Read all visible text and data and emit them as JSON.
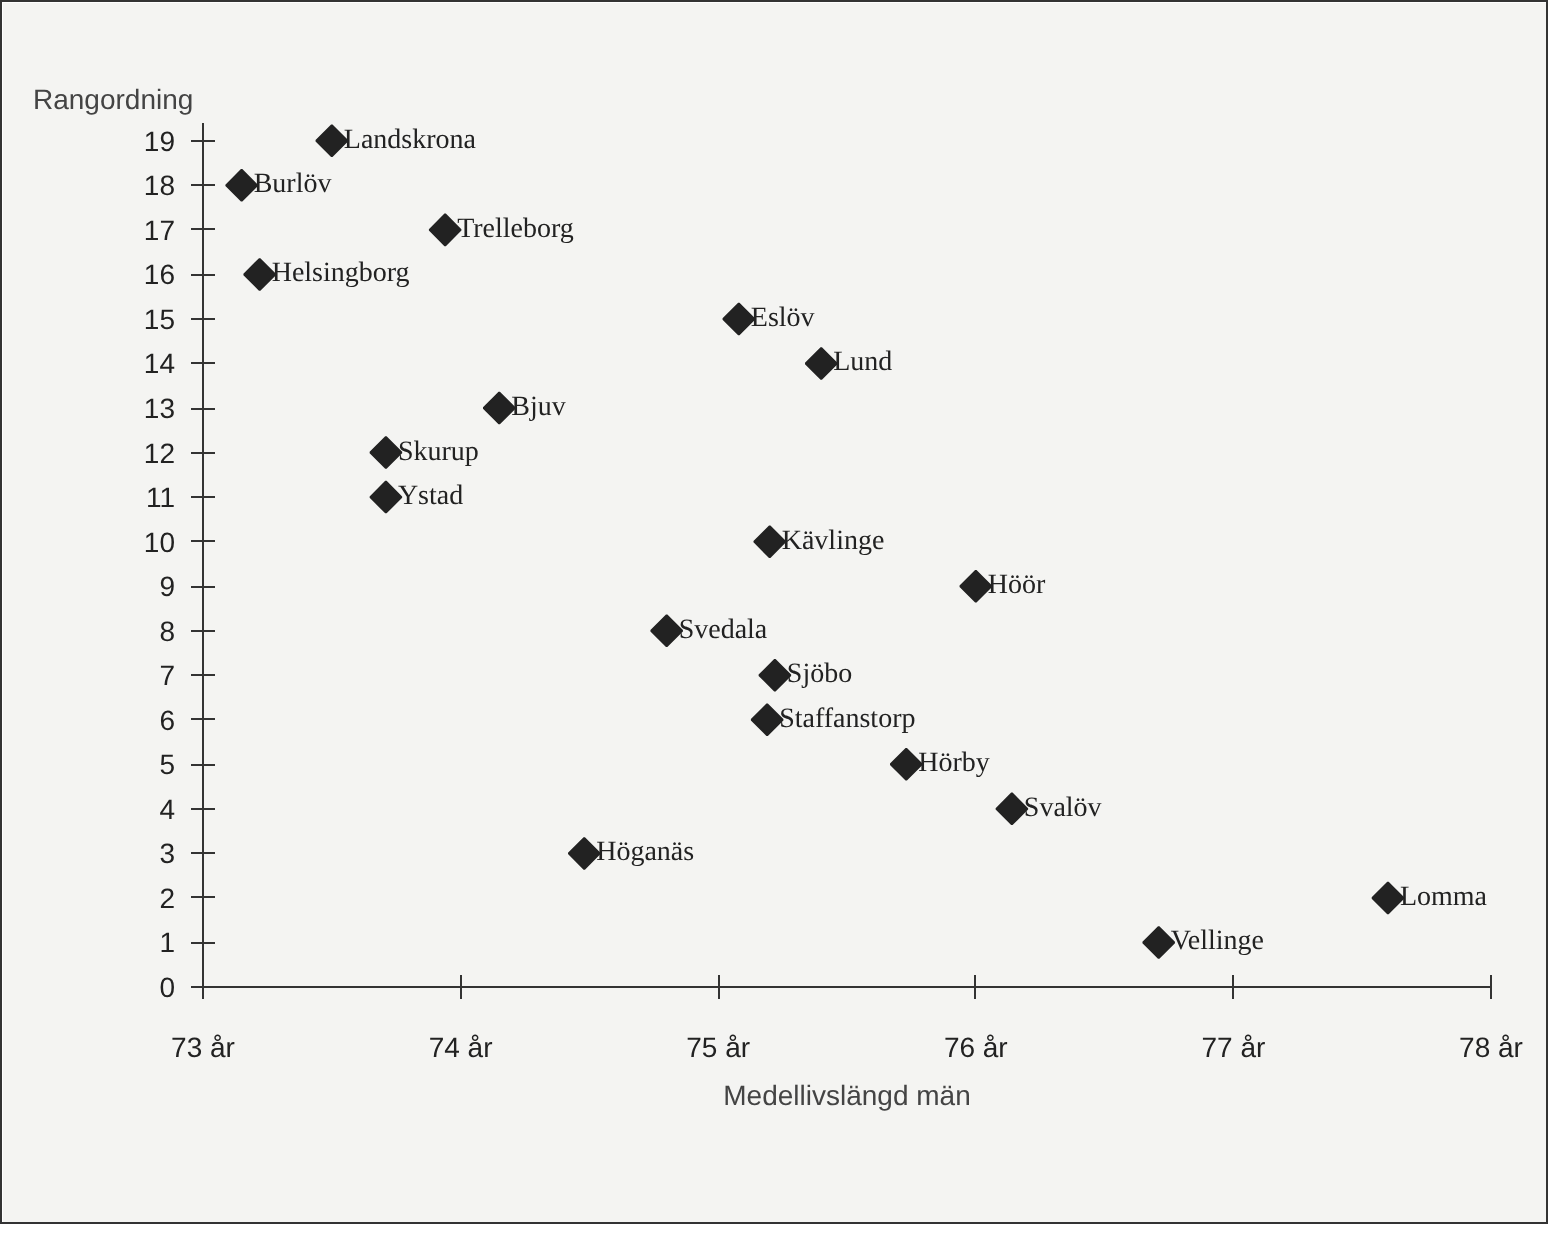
{
  "chart_data": {
    "type": "scatter",
    "ylabel": "Rangordning",
    "xlabel": "Medellivslängd män",
    "marker": "diamond",
    "grid": false,
    "xlim": [
      73,
      78
    ],
    "ylim": [
      0,
      19.4
    ],
    "xticks": [
      {
        "value": 73,
        "label": "73 år"
      },
      {
        "value": 74,
        "label": "74 år"
      },
      {
        "value": 75,
        "label": "75 år"
      },
      {
        "value": 76,
        "label": "76 år"
      },
      {
        "value": 77,
        "label": "77 år"
      },
      {
        "value": 78,
        "label": "78 år"
      }
    ],
    "yticks": [
      0,
      1,
      2,
      3,
      4,
      5,
      6,
      7,
      8,
      9,
      10,
      11,
      12,
      13,
      14,
      15,
      16,
      17,
      18,
      19
    ],
    "series": [
      {
        "color": "#222222",
        "x": [
          73.5,
          73.15,
          73.94,
          73.22,
          75.08,
          75.4,
          74.15,
          73.71,
          73.71,
          75.2,
          76.0,
          74.8,
          75.22,
          75.19,
          75.73,
          76.14,
          74.48,
          77.6,
          76.71
        ],
        "values": [
          19,
          18,
          17,
          16,
          15,
          14,
          13,
          12,
          11,
          10,
          9,
          8,
          7,
          6,
          5,
          4,
          3,
          2,
          1
        ]
      }
    ],
    "annotations": [
      {
        "text": "Landskrona",
        "x": 73.5,
        "y": 19
      },
      {
        "text": "Burlöv",
        "x": 73.15,
        "y": 18
      },
      {
        "text": "Trelleborg",
        "x": 73.94,
        "y": 17
      },
      {
        "text": "Helsingborg",
        "x": 73.22,
        "y": 16
      },
      {
        "text": "Eslöv",
        "x": 75.08,
        "y": 15
      },
      {
        "text": "Lund",
        "x": 75.4,
        "y": 14
      },
      {
        "text": "Bjuv",
        "x": 74.15,
        "y": 13
      },
      {
        "text": "Skurup",
        "x": 73.71,
        "y": 12
      },
      {
        "text": "Ystad",
        "x": 73.71,
        "y": 11
      },
      {
        "text": "Kävlinge",
        "x": 75.2,
        "y": 10
      },
      {
        "text": "Höör",
        "x": 76.0,
        "y": 9
      },
      {
        "text": "Svedala",
        "x": 74.8,
        "y": 8
      },
      {
        "text": "Sjöbo",
        "x": 75.22,
        "y": 7
      },
      {
        "text": "Staffanstorp",
        "x": 75.19,
        "y": 6
      },
      {
        "text": "Hörby",
        "x": 75.73,
        "y": 5
      },
      {
        "text": "Svalöv",
        "x": 76.14,
        "y": 4
      },
      {
        "text": "Höganäs",
        "x": 74.48,
        "y": 3
      },
      {
        "text": "Lomma",
        "x": 77.6,
        "y": 2
      },
      {
        "text": "Vellinge",
        "x": 76.71,
        "y": 1
      }
    ]
  }
}
